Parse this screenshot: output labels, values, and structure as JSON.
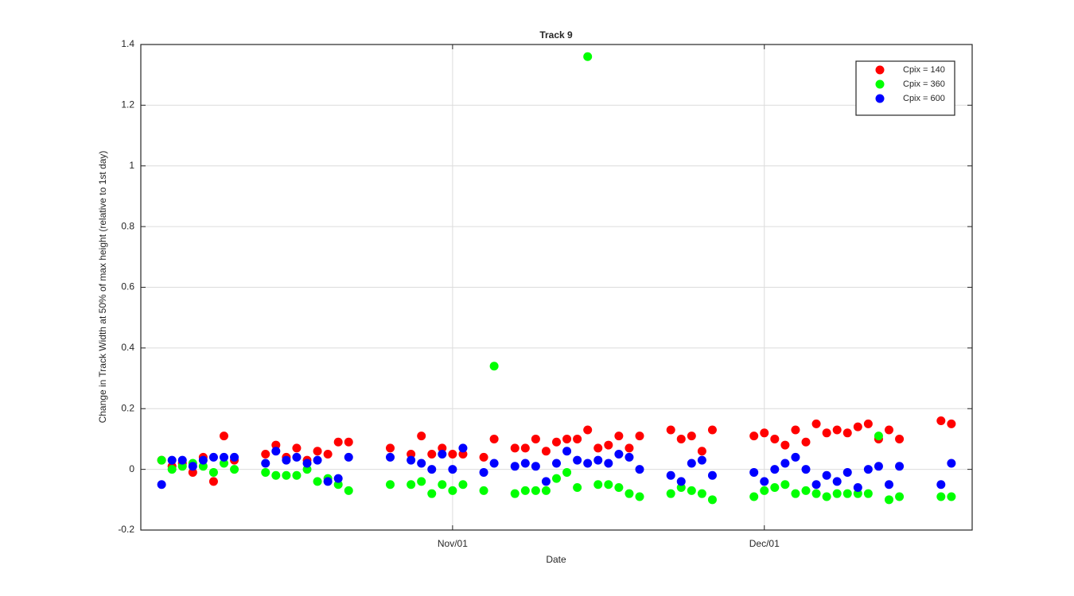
{
  "chart_data": {
    "type": "scatter",
    "title": "Track 9",
    "x_label": "Date",
    "y_label": "Change in Track Width at 50% of max height (relative to 1st day)",
    "x": [
      "Oct/04",
      "Oct/05",
      "Oct/06",
      "Oct/07",
      "Oct/08",
      "Oct/09",
      "Oct/10",
      "Oct/11",
      "Oct/14",
      "Oct/15",
      "Oct/16",
      "Oct/17",
      "Oct/18",
      "Oct/19",
      "Oct/20",
      "Oct/21",
      "Oct/22",
      "Oct/26",
      "Oct/28",
      "Oct/29",
      "Oct/30",
      "Oct/31",
      "Nov/01",
      "Nov/02",
      "Nov/04",
      "Nov/05",
      "Nov/07",
      "Nov/08",
      "Nov/09",
      "Nov/10",
      "Nov/11",
      "Nov/12",
      "Nov/13",
      "Nov/14",
      "Nov/15",
      "Nov/16",
      "Nov/17",
      "Nov/18",
      "Nov/19",
      "Nov/22",
      "Nov/23",
      "Nov/24",
      "Nov/25",
      "Nov/26",
      "Nov/30",
      "Dec/01",
      "Dec/02",
      "Dec/03",
      "Dec/04",
      "Dec/05",
      "Dec/06",
      "Dec/07",
      "Dec/08",
      "Dec/09",
      "Dec/10",
      "Dec/11",
      "Dec/12",
      "Dec/13",
      "Dec/14",
      "Dec/18",
      "Dec/19"
    ],
    "series": [
      {
        "name": "Cpix = 140",
        "color": "#ff0000",
        "values": [
          0.03,
          0.01,
          0.02,
          -0.01,
          0.04,
          -0.04,
          0.11,
          0.03,
          0.05,
          0.08,
          0.04,
          0.07,
          0.03,
          0.06,
          0.05,
          0.09,
          0.09,
          0.07,
          0.05,
          0.11,
          0.05,
          0.07,
          0.05,
          0.05,
          0.04,
          0.1,
          0.07,
          0.07,
          0.1,
          0.06,
          0.09,
          0.1,
          0.1,
          0.13,
          0.07,
          0.08,
          0.11,
          0.07,
          0.11,
          0.13,
          0.1,
          0.11,
          0.06,
          0.13,
          0.11,
          0.12,
          0.1,
          0.08,
          0.13,
          0.09,
          0.15,
          0.12,
          0.13,
          0.12,
          0.14,
          0.15,
          0.1,
          0.13,
          0.1,
          0.16,
          0.15
        ]
      },
      {
        "name": "Cpix = 360",
        "color": "#00ff00",
        "values": [
          0.03,
          0.0,
          0.01,
          0.02,
          0.01,
          -0.01,
          0.02,
          0.0,
          -0.01,
          -0.02,
          -0.02,
          -0.02,
          0.0,
          -0.04,
          -0.03,
          -0.05,
          -0.07,
          -0.05,
          -0.05,
          -0.04,
          -0.08,
          -0.05,
          -0.07,
          -0.05,
          -0.07,
          0.34,
          -0.08,
          -0.07,
          -0.07,
          -0.07,
          -0.03,
          -0.01,
          -0.06,
          1.36,
          -0.05,
          -0.05,
          -0.06,
          -0.08,
          -0.09,
          -0.08,
          -0.06,
          -0.07,
          -0.08,
          -0.1,
          -0.09,
          -0.07,
          -0.06,
          -0.05,
          -0.08,
          -0.07,
          -0.08,
          -0.09,
          -0.08,
          -0.08,
          -0.08,
          -0.08,
          0.11,
          -0.1,
          -0.09,
          -0.09,
          -0.09
        ]
      },
      {
        "name": "Cpix = 600",
        "color": "#0000ff",
        "values": [
          -0.05,
          0.03,
          0.03,
          0.01,
          0.03,
          0.04,
          0.04,
          0.04,
          0.02,
          0.06,
          0.03,
          0.04,
          0.02,
          0.03,
          -0.04,
          -0.03,
          0.04,
          0.04,
          0.03,
          0.02,
          0.0,
          0.05,
          0.0,
          0.07,
          -0.01,
          0.02,
          0.01,
          0.02,
          0.01,
          -0.04,
          0.02,
          0.06,
          0.03,
          0.02,
          0.03,
          0.02,
          0.05,
          0.04,
          0.0,
          -0.02,
          -0.04,
          0.02,
          0.03,
          -0.02,
          -0.01,
          -0.04,
          0.0,
          0.02,
          0.04,
          0.0,
          -0.05,
          -0.02,
          -0.04,
          -0.01,
          -0.06,
          0.0,
          0.01,
          -0.05,
          0.01,
          -0.05,
          0.02
        ]
      }
    ],
    "xlim": [
      "Oct/02",
      "Dec/21"
    ],
    "xticks": [
      "Nov/01",
      "Dec/01"
    ],
    "ylim": [
      -0.2,
      1.4
    ],
    "yticks": [
      -0.2,
      0,
      0.2,
      0.4,
      0.6,
      0.8,
      1,
      1.2,
      1.4
    ],
    "grid": true,
    "legend": "northeast"
  }
}
